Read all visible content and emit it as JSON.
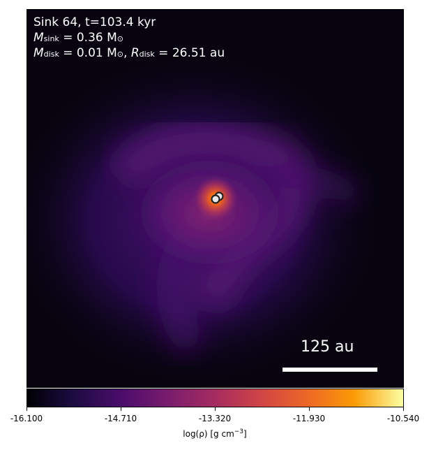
{
  "annotation": {
    "line1": "Sink 64, t=103.4 kyr",
    "msink_prefix": "M",
    "msink_sub": "sink",
    "msink_value": " = 0.36 M",
    "msink_unit_sub": "⊙",
    "mdisk_prefix": "M",
    "mdisk_sub": "disk",
    "mdisk_value": " = 0.01 M",
    "mdisk_unit_sub": "⊙",
    "rdisk_sep": ", ",
    "rdisk_prefix": "R",
    "rdisk_sub": "disk",
    "rdisk_value": " = 26.51 au"
  },
  "scale_bar": {
    "label": "125 au"
  },
  "colorbar": {
    "ticks": [
      "-16.100",
      "-14.710",
      "-13.320",
      "-11.930",
      "-10.540"
    ],
    "label_prefix": "log(ρ) [g cm",
    "label_exp": "−3",
    "label_suffix": "]"
  },
  "colors": {
    "background": "#07040f",
    "envelope": "#4a1070",
    "core": "#ff8c1a",
    "sink_fill": "#e8e8e8",
    "sink_stroke": "#222222"
  }
}
